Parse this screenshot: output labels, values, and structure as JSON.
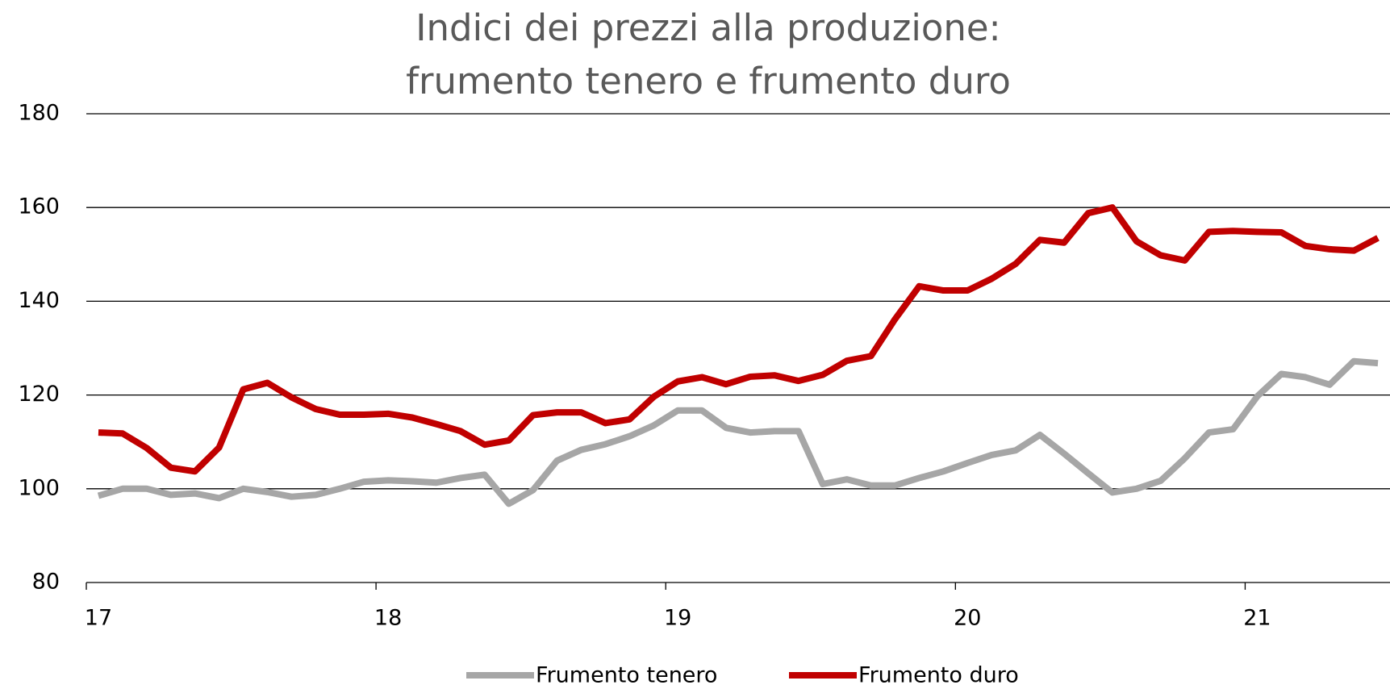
{
  "chart_data": {
    "type": "line",
    "title": [
      "Indici dei prezzi alla produzione:",
      "frumento tenero e frumento duro"
    ],
    "categories": [
      "17",
      null,
      null,
      null,
      null,
      null,
      null,
      null,
      null,
      null,
      null,
      null,
      "18",
      null,
      null,
      null,
      null,
      null,
      null,
      null,
      null,
      null,
      null,
      null,
      "19",
      null,
      null,
      null,
      null,
      null,
      null,
      null,
      null,
      null,
      null,
      null,
      "20",
      null,
      null,
      null,
      null,
      null,
      null,
      null,
      null,
      null,
      null,
      null,
      "21",
      null,
      null,
      null,
      null,
      null
    ],
    "series": [
      {
        "name": "Frumento tenero",
        "color": "#a6a6a6",
        "values": [
          98.5,
          100,
          100,
          98.7,
          99,
          98,
          100,
          99.3,
          98.3,
          98.7,
          100,
          101.5,
          101.8,
          101.6,
          101.3,
          102.3,
          103,
          96.8,
          99.7,
          106,
          108.3,
          109.5,
          111.2,
          113.5,
          116.7,
          116.7,
          113,
          112,
          112.3,
          112.3,
          101,
          102,
          100.7,
          100.7,
          102.3,
          103.7,
          105.5,
          107.2,
          108.2,
          111.5,
          107.5,
          103.3,
          99.2,
          100,
          101.7,
          106.5,
          112,
          112.7,
          119.7,
          124.5,
          123.8,
          122.2,
          127.2,
          126.8
        ]
      },
      {
        "name": "Frumento duro",
        "color": "#c00000",
        "values": [
          112,
          111.8,
          108.7,
          104.5,
          103.7,
          108.8,
          121.2,
          122.6,
          119.5,
          117,
          115.8,
          115.8,
          116,
          115.2,
          113.8,
          112.3,
          109.4,
          110.3,
          115.7,
          116.3,
          116.3,
          114,
          114.8,
          119.6,
          122.9,
          123.8,
          122.3,
          123.9,
          124.2,
          123,
          124.3,
          127.3,
          128.3,
          136.2,
          143.2,
          142.3,
          142.3,
          144.8,
          148,
          153.1,
          152.5,
          158.8,
          160,
          152.8,
          149.8,
          148.7,
          154.8,
          155,
          154.8,
          154.7,
          151.8,
          151.1,
          150.8,
          153.5
        ]
      }
    ],
    "ylim": [
      80,
      180
    ],
    "yticks": [
      80,
      100,
      120,
      140,
      160,
      180
    ],
    "grid": true
  }
}
